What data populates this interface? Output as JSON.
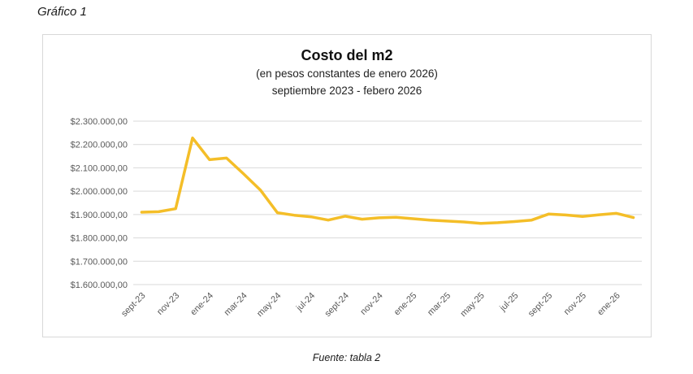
{
  "page": {
    "label": "Gráfico 1",
    "source_note": "Fuente: tabla 2",
    "background": "#ffffff"
  },
  "chart": {
    "title": "Costo del m2",
    "subtitle1": "(en pesos constantes de enero 2026)",
    "subtitle2": "septiembre 2023 - febero 2026"
  },
  "chart_data": {
    "type": "line",
    "title": "Costo del m2",
    "subtitle": [
      "(en pesos constantes de enero 2026)",
      "septiembre 2023 - febero 2026"
    ],
    "x": [
      "sept-23",
      "oct-23",
      "nov-23",
      "dic-23",
      "ene-24",
      "feb-24",
      "mar-24",
      "abr-24",
      "may-24",
      "jun-24",
      "jul-24",
      "ago-24",
      "sept-24",
      "oct-24",
      "nov-24",
      "dic-24",
      "ene-25",
      "feb-25",
      "mar-25",
      "abr-25",
      "may-25",
      "jun-25",
      "jul-25",
      "ago-25",
      "sept-25",
      "oct-25",
      "nov-25",
      "dic-25",
      "ene-26",
      "feb-26"
    ],
    "values": [
      1910000,
      1912000,
      1925000,
      2228000,
      2135000,
      2142000,
      2075000,
      2005000,
      1908000,
      1897000,
      1890000,
      1876000,
      1893000,
      1880000,
      1886000,
      1888000,
      1882000,
      1876000,
      1872000,
      1868000,
      1862000,
      1865000,
      1870000,
      1876000,
      1902000,
      1898000,
      1892000,
      1899000,
      1905000,
      1887000
    ],
    "x_tick_labels": [
      "sept-23",
      "nov-23",
      "ene-24",
      "mar-24",
      "may-24",
      "jul-24",
      "sept-24",
      "nov-24",
      "ene-25",
      "mar-25",
      "may-25",
      "jul-25",
      "sept-25",
      "nov-25",
      "ene-26"
    ],
    "x_tick_every": 2,
    "y_ticks": [
      1600000,
      1700000,
      1800000,
      1900000,
      2000000,
      2100000,
      2200000,
      2300000
    ],
    "y_tick_labels": [
      "$1.600.000,00",
      "$1.700.000,00",
      "$1.800.000,00",
      "$1.900.000,00",
      "$2.000.000,00",
      "$2.100.000,00",
      "$2.200.000,00",
      "$2.300.000,00"
    ],
    "ylim": [
      1600000,
      2300000
    ],
    "xlabel": "",
    "ylabel": "",
    "legend": "none",
    "grid": "horizontal",
    "series_color": "#F4BE28",
    "grid_color": "#d9d9d9",
    "tick_label_color": "#595959"
  }
}
